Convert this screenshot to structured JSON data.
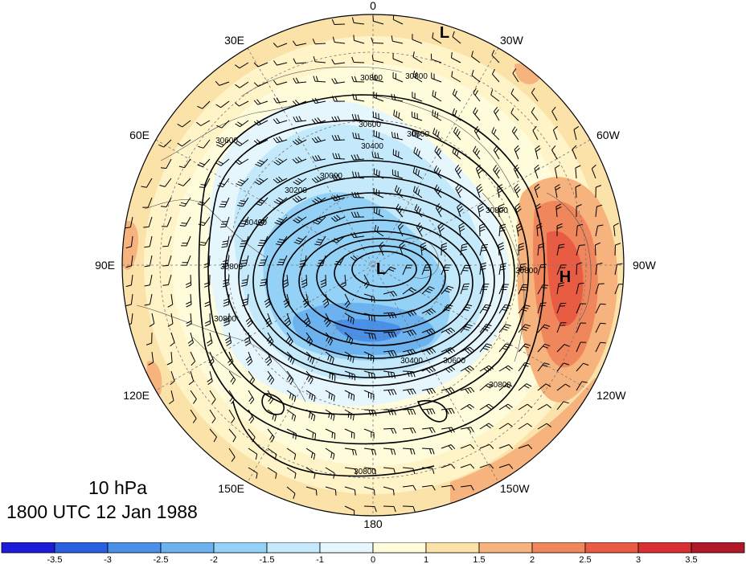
{
  "map": {
    "projection": "north-polar-stereographic",
    "field": "10 hPa geopotential height with anomaly shading and wind barbs",
    "longitude_labels": [
      "0",
      "30W",
      "60W",
      "90W",
      "120W",
      "150W",
      "180",
      "150E",
      "120E",
      "90E",
      "60E",
      "30E"
    ],
    "contour_labels": [
      "30800",
      "30800",
      "30600",
      "30600",
      "30400",
      "30200",
      "30000",
      "30400",
      "30600",
      "30800",
      "30800",
      "30800",
      "30800",
      "30400",
      "30600",
      "30800",
      "30800"
    ],
    "centers": {
      "pole_low": "L",
      "top_low": "L",
      "high": "H"
    },
    "colors": {
      "coast": "#555555",
      "contour": "#000000",
      "grid": "#777777"
    }
  },
  "caption": {
    "level": "10 hPa",
    "time": "1800 UTC 12 Jan 1988"
  },
  "colorbar": {
    "boundaries": [
      "-3.5",
      "-3",
      "-2.5",
      "-2",
      "-1.5",
      "-1",
      "0",
      "1",
      "1.5",
      "2",
      "2.5",
      "3",
      "3.5"
    ],
    "colors": [
      "#1b1bd8",
      "#2a5fe0",
      "#4a8fe8",
      "#6cb2ef",
      "#93d1f6",
      "#c3e9fb",
      "#e6f6fd",
      "#fffcdb",
      "#fbe2a8",
      "#f7b37d",
      "#f0875c",
      "#e85c44",
      "#d93034",
      "#b01a28"
    ]
  }
}
